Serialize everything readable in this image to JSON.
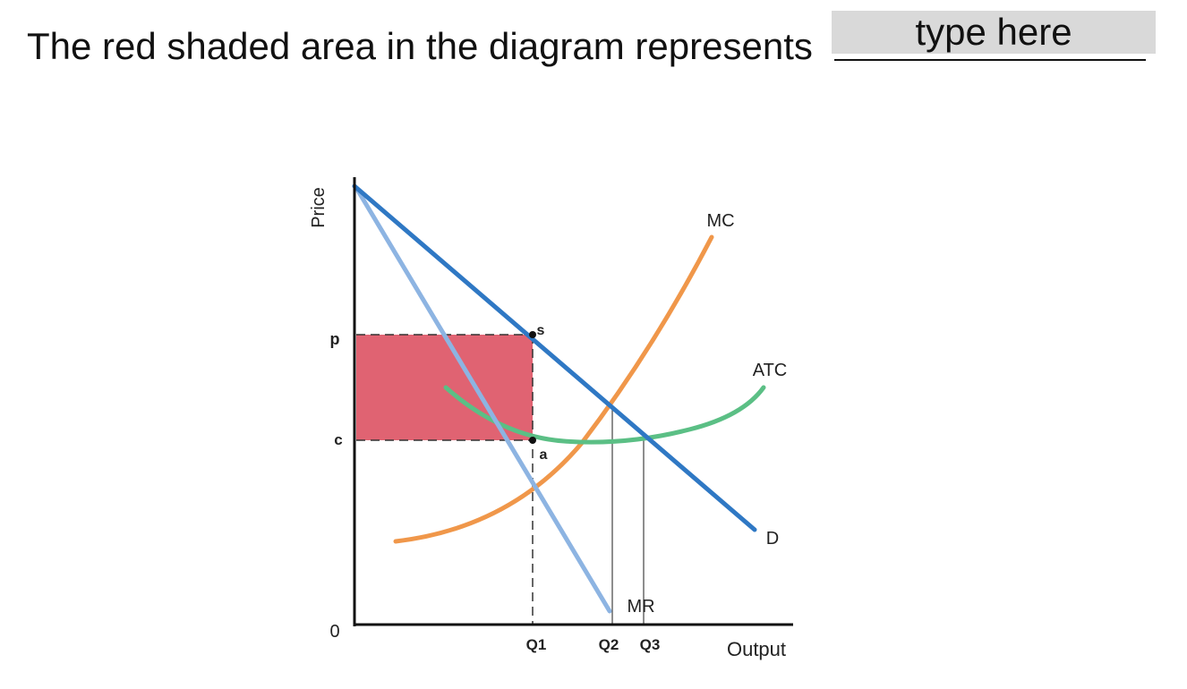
{
  "question": {
    "text": "The red shaded area in the diagram represents",
    "answer_placeholder": "type here",
    "answer_value": ""
  },
  "diagram": {
    "y_axis_label": "Price",
    "x_axis_label": "Output",
    "origin_label": "0",
    "price_labels": {
      "p": "p",
      "c": "c"
    },
    "quantity_labels": {
      "q1": "Q1",
      "q2": "Q2",
      "q3": "Q3"
    },
    "point_labels": {
      "s": "s",
      "a": "a"
    },
    "curve_labels": {
      "mc": "MC",
      "atc": "ATC",
      "d": "D",
      "mr": "MR"
    },
    "colors": {
      "demand": "#2f78c4",
      "marginal_revenue": "#8db4e2",
      "marginal_cost": "#f0974a",
      "average_total_cost": "#5bbf85",
      "shaded_area": "#e06372",
      "axes": "#111111"
    }
  }
}
